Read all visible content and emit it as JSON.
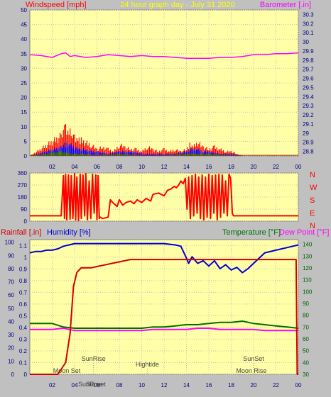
{
  "header": {
    "left_title": "Windspeed [mph]",
    "center_title": "24 hour graph day - July 31 2020",
    "right_title": "Barometer [.in]"
  },
  "colors": {
    "background": "#c0c0c0",
    "plot_bg": "#ffffa8",
    "grid": "#d6b9b9",
    "wind_red": "#ff0000",
    "wind_blue": "#0000ff",
    "wind_green": "#008000",
    "barometer": "#ff00ff",
    "title_yellow": "#ffff00",
    "humidity": "#0000d0",
    "temperature": "#007000",
    "dewpoint": "#ff00ff",
    "rainfall": "#d00000"
  },
  "x_ticks": [
    "02",
    "04",
    "06",
    "08",
    "10",
    "12",
    "14",
    "16",
    "18",
    "20",
    "22",
    "00"
  ],
  "chart_data": [
    {
      "type": "line",
      "title": "24 hour graph day - July 31 2020",
      "ylabel_left": "Windspeed [mph]",
      "ylabel_right": "Barometer [.in]",
      "left_ticks": [
        "0",
        "5",
        "10",
        "15",
        "20",
        "25",
        "30",
        "35",
        "40",
        "45",
        "50"
      ],
      "right_ticks": [
        "28.8",
        "28.9",
        "29",
        "29.1",
        "29.2",
        "29.3",
        "29.4",
        "29.5",
        "29.6",
        "29.7",
        "29.8",
        "29.9",
        "30",
        "30.1",
        "30.2",
        "30.3"
      ],
      "ylim_left": [
        0,
        50
      ],
      "ylim_right": [
        28.75,
        30.35
      ],
      "series": [
        {
          "role": "barometer",
          "axis": "right",
          "x": [
            0,
            1,
            2,
            2.8,
            3.2,
            3.6,
            4,
            5,
            6,
            7,
            8,
            9,
            10,
            11,
            12,
            13,
            14,
            15,
            16,
            17,
            18,
            19,
            20,
            21,
            22,
            23,
            24
          ],
          "y": [
            29.86,
            29.85,
            29.83,
            29.87,
            29.88,
            29.84,
            29.85,
            29.83,
            29.84,
            29.86,
            29.85,
            29.84,
            29.85,
            29.84,
            29.84,
            29.83,
            29.82,
            29.82,
            29.82,
            29.83,
            29.83,
            29.84,
            29.86,
            29.86,
            29.87,
            29.87,
            29.88
          ]
        },
        {
          "role": "gust",
          "axis": "left",
          "x": [
            0,
            2.8,
            3,
            3.2,
            3.5,
            3.8,
            4,
            4.3,
            4.6,
            5,
            5.5,
            6,
            6.5,
            7,
            7.5,
            8,
            8.5,
            9,
            9.5,
            10,
            10.5,
            11,
            11.5,
            12,
            12.5,
            13,
            13.5,
            14,
            14.3,
            14.6,
            15,
            15.5,
            16,
            16.5,
            17,
            17.5,
            18,
            18.5,
            19
          ],
          "y": [
            0,
            9,
            14,
            12,
            10,
            11,
            9,
            8,
            7,
            6,
            5,
            3,
            4,
            3,
            2,
            5,
            4,
            3,
            3,
            2,
            4,
            3,
            2,
            3,
            2,
            3,
            2,
            3,
            5,
            4,
            6,
            4,
            3,
            4,
            3,
            2,
            2,
            1,
            0
          ]
        },
        {
          "role": "average",
          "axis": "left",
          "x": [
            0,
            2.8,
            3,
            3.3,
            3.6,
            4,
            4.5,
            5,
            5.5,
            6,
            7,
            8,
            9,
            10,
            11,
            12,
            13,
            14,
            14.5,
            15,
            15.5,
            16,
            17,
            18,
            19
          ],
          "y": [
            0,
            4,
            6,
            5,
            5,
            4,
            3,
            3,
            2,
            2,
            1,
            2,
            2,
            1,
            1,
            1,
            1,
            2,
            3,
            3,
            2,
            2,
            1,
            1,
            0
          ]
        },
        {
          "role": "lull",
          "axis": "left",
          "x": [
            0,
            2.8,
            3,
            3.5,
            4,
            5,
            6,
            8,
            10,
            12,
            14,
            15,
            16,
            18,
            19
          ],
          "y": [
            0,
            2,
            2,
            1,
            1,
            1,
            0,
            1,
            0,
            0,
            1,
            1,
            1,
            0,
            0
          ]
        }
      ]
    },
    {
      "type": "line",
      "ylabel_right_letters": [
        "N",
        "W",
        "S",
        "E",
        "N"
      ],
      "left_ticks": [
        "0",
        "90",
        "180",
        "270",
        "360"
      ],
      "ylim": [
        0,
        360
      ],
      "series": [
        {
          "role": "wind_direction",
          "x": [
            0,
            2.8,
            3.0,
            3.1,
            3.2,
            3.3,
            3.45,
            3.6,
            3.7,
            3.85,
            4.0,
            4.1,
            4.2,
            4.35,
            4.5,
            4.6,
            4.75,
            4.9,
            5.0,
            5.15,
            5.3,
            5.45,
            5.6,
            5.75,
            5.9,
            6.0,
            6.1,
            6.2,
            6.3,
            6.5,
            7,
            7.2,
            7.4,
            7.8,
            8,
            8.3,
            8.6,
            9,
            9.3,
            9.6,
            10,
            10.4,
            10.8,
            11,
            11.5,
            12,
            12.3,
            12.6,
            12.9,
            13.1,
            13.3,
            13.5,
            13.7,
            13.9,
            14.05,
            14.2,
            14.35,
            14.5,
            14.65,
            14.8,
            14.95,
            15.1,
            15.25,
            15.4,
            15.55,
            15.7,
            15.85,
            16.0,
            16.15,
            16.3,
            16.45,
            16.6,
            16.75,
            16.9,
            17.05,
            17.2,
            17.35,
            17.5,
            17.65,
            17.8,
            17.95,
            18.1,
            18.2,
            24
          ],
          "y": [
            40,
            40,
            340,
            20,
            350,
            10,
            345,
            15,
            340,
            20,
            355,
            10,
            330,
            5,
            350,
            20,
            345,
            40,
            355,
            10,
            300,
            20,
            350,
            60,
            345,
            10,
            340,
            20,
            30,
            20,
            30,
            160,
            140,
            110,
            160,
            120,
            140,
            150,
            130,
            160,
            140,
            170,
            150,
            200,
            210,
            190,
            230,
            240,
            260,
            250,
            270,
            300,
            280,
            320,
            90,
            330,
            20,
            340,
            40,
            350,
            60,
            330,
            20,
            345,
            10,
            330,
            30,
            350,
            20,
            340,
            60,
            345,
            10,
            350,
            30,
            345,
            60,
            300,
            40,
            350,
            320,
            60,
            40,
            40
          ]
        }
      ]
    },
    {
      "type": "line",
      "ylabel_rain": "Rainfall [.in]",
      "ylabel_humidity": "Humidity [%]",
      "ylabel_temperature": "Temperature [°F]",
      "ylabel_dewpoint": "Dew Point [°F]",
      "rain_ticks": [
        "0",
        "0.1",
        "0.2",
        "0.3",
        "0.4",
        "0.5",
        "0.6",
        "0.7",
        "0.8",
        "0.9",
        "1",
        "1.1"
      ],
      "humidity_ticks": [
        "0",
        "10",
        "20",
        "30",
        "40",
        "50",
        "60",
        "70",
        "80",
        "90",
        "100"
      ],
      "temp_ticks": [
        "30",
        "40",
        "50",
        "60",
        "70",
        "80",
        "90",
        "100",
        "110",
        "120",
        "130",
        "140"
      ],
      "rain_ylim": [
        0,
        1.15
      ],
      "humidity_ylim": [
        0,
        102
      ],
      "temp_ylim": [
        30,
        144
      ],
      "series": [
        {
          "role": "humidity",
          "x": [
            0,
            0.5,
            1,
            1.5,
            2,
            2.5,
            3,
            3.5,
            4,
            5,
            6,
            7,
            8,
            9,
            10,
            11,
            12,
            13,
            13.5,
            14,
            14.2,
            14.5,
            15,
            15.5,
            16,
            16.5,
            17,
            17.5,
            18,
            18.5,
            19,
            19.5,
            20,
            21,
            22,
            23,
            24
          ],
          "y": [
            92,
            93,
            93,
            94,
            94,
            95,
            97,
            98,
            99,
            99,
            99,
            99,
            99,
            99,
            99,
            99,
            99,
            98,
            97,
            88,
            84,
            89,
            84,
            86,
            82,
            86,
            80,
            83,
            79,
            81,
            77,
            80,
            84,
            92,
            94,
            96,
            98
          ]
        },
        {
          "role": "temperature",
          "x": [
            0,
            1,
            2,
            3,
            4,
            5,
            6,
            7,
            8,
            9,
            10,
            11,
            12,
            13,
            14,
            15,
            16,
            17,
            18,
            19,
            20,
            21,
            22,
            23,
            24
          ],
          "y": [
            73,
            73,
            73,
            70,
            69,
            69,
            69,
            69,
            69,
            69,
            69,
            70,
            70,
            71,
            72,
            72,
            73,
            74,
            74,
            75,
            73,
            72,
            71,
            70,
            69
          ]
        },
        {
          "role": "dewpoint",
          "x": [
            0,
            1,
            2,
            3,
            4,
            5,
            6,
            7,
            8,
            9,
            10,
            11,
            12,
            13,
            14,
            15,
            16,
            17,
            18,
            19,
            20,
            21,
            22,
            23,
            24
          ],
          "y": [
            68,
            68,
            68,
            69,
            67,
            67,
            67,
            67,
            67,
            67,
            67,
            68,
            68,
            68,
            68,
            69,
            69,
            68,
            68,
            68,
            68,
            67,
            67,
            67,
            67
          ]
        },
        {
          "role": "rainfall",
          "x": [
            0,
            2.5,
            3.2,
            3.6,
            3.9,
            4.2,
            4.6,
            5,
            5.5,
            6,
            6.5,
            7,
            7.5,
            8,
            8.5,
            9,
            10,
            12,
            14,
            16,
            18,
            20,
            22,
            23.8,
            23.9,
            24
          ],
          "y": [
            0,
            0,
            0.1,
            0.35,
            0.75,
            0.87,
            0.91,
            0.91,
            0.91,
            0.92,
            0.93,
            0.94,
            0.95,
            0.96,
            0.97,
            0.98,
            0.98,
            0.98,
            0.98,
            0.98,
            0.98,
            0.98,
            0.98,
            0.98,
            0,
            0
          ]
        }
      ]
    }
  ],
  "events": [
    {
      "label": "SunRise",
      "hour": 5.7,
      "row": "upper"
    },
    {
      "label": "Moon Set",
      "hour": 3.3,
      "row": "lower"
    },
    {
      "label": "SunSet",
      "hour": 20.0,
      "row": "upper"
    },
    {
      "label": "Moon Rise",
      "hour": 19.8,
      "row": "lower"
    },
    {
      "label": "Hightide",
      "hour": 10.5,
      "row": "middle"
    },
    {
      "label": "SunRise",
      "hour": 5.4,
      "row": "axis"
    },
    {
      "label": "Sunset",
      "hour": 5.9,
      "row": "axis"
    }
  ]
}
